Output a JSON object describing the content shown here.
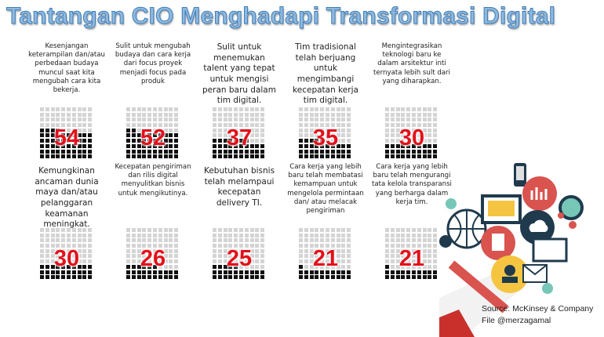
{
  "title": "Tantangan CIO Menghadapi Transformasi Digital",
  "stats": [
    {
      "value": 54,
      "text": "Kesenjangan keterampilan dan/atau perbedaan budaya muncul saat kita mengubah cara kita bekerja."
    },
    {
      "value": 52,
      "text": "Sulit untuk mengubah budaya dan cara kerja dari focus proyek menjadi focus pada produk"
    },
    {
      "value": 37,
      "text": "Sulit untuk menemukan talent yang tepat untuk mengisi peran baru dalam tim digital."
    },
    {
      "value": 35,
      "text": "Tim tradisional telah berjuang untuk mengimbangi kecepatan kerja tim digital."
    },
    {
      "value": 30,
      "text": "Mengintegrasikan teknologi baru ke dalam arsitektur inti ternyata lebih sult dari yang diharapkan."
    },
    {
      "value": 30,
      "text": "Kemungkinan ancaman dunia maya dan/atau pelanggaran keamanan meningkat."
    },
    {
      "value": 26,
      "text": "Kecepatan pengiriman dan rilis digital menyulitkan bisnis untuk mengikutinya."
    },
    {
      "value": 25,
      "text": "Kebutuhan bisnis telah melampaui kecepatan delivery TI."
    },
    {
      "value": 21,
      "text": "Cara kerja yang lebih baru telah membatasi kemampuan untuk mengelola permintaan dan/ atau melacak pengiriman"
    },
    {
      "value": 21,
      "text": "Cara kerja yang lebih baru telah mengurangi tata kelola transparansi yang berharga dalam kerja tim."
    }
  ],
  "source": {
    "line1": "Source: McKinsey & Company",
    "line2": "File @merzagamal"
  },
  "colors": {
    "number": "#e3101a",
    "filled": "#111111",
    "empty": "#d4d4d4",
    "title": "#8fb8de"
  },
  "illustration": "megaphone-with-tech-icons"
}
